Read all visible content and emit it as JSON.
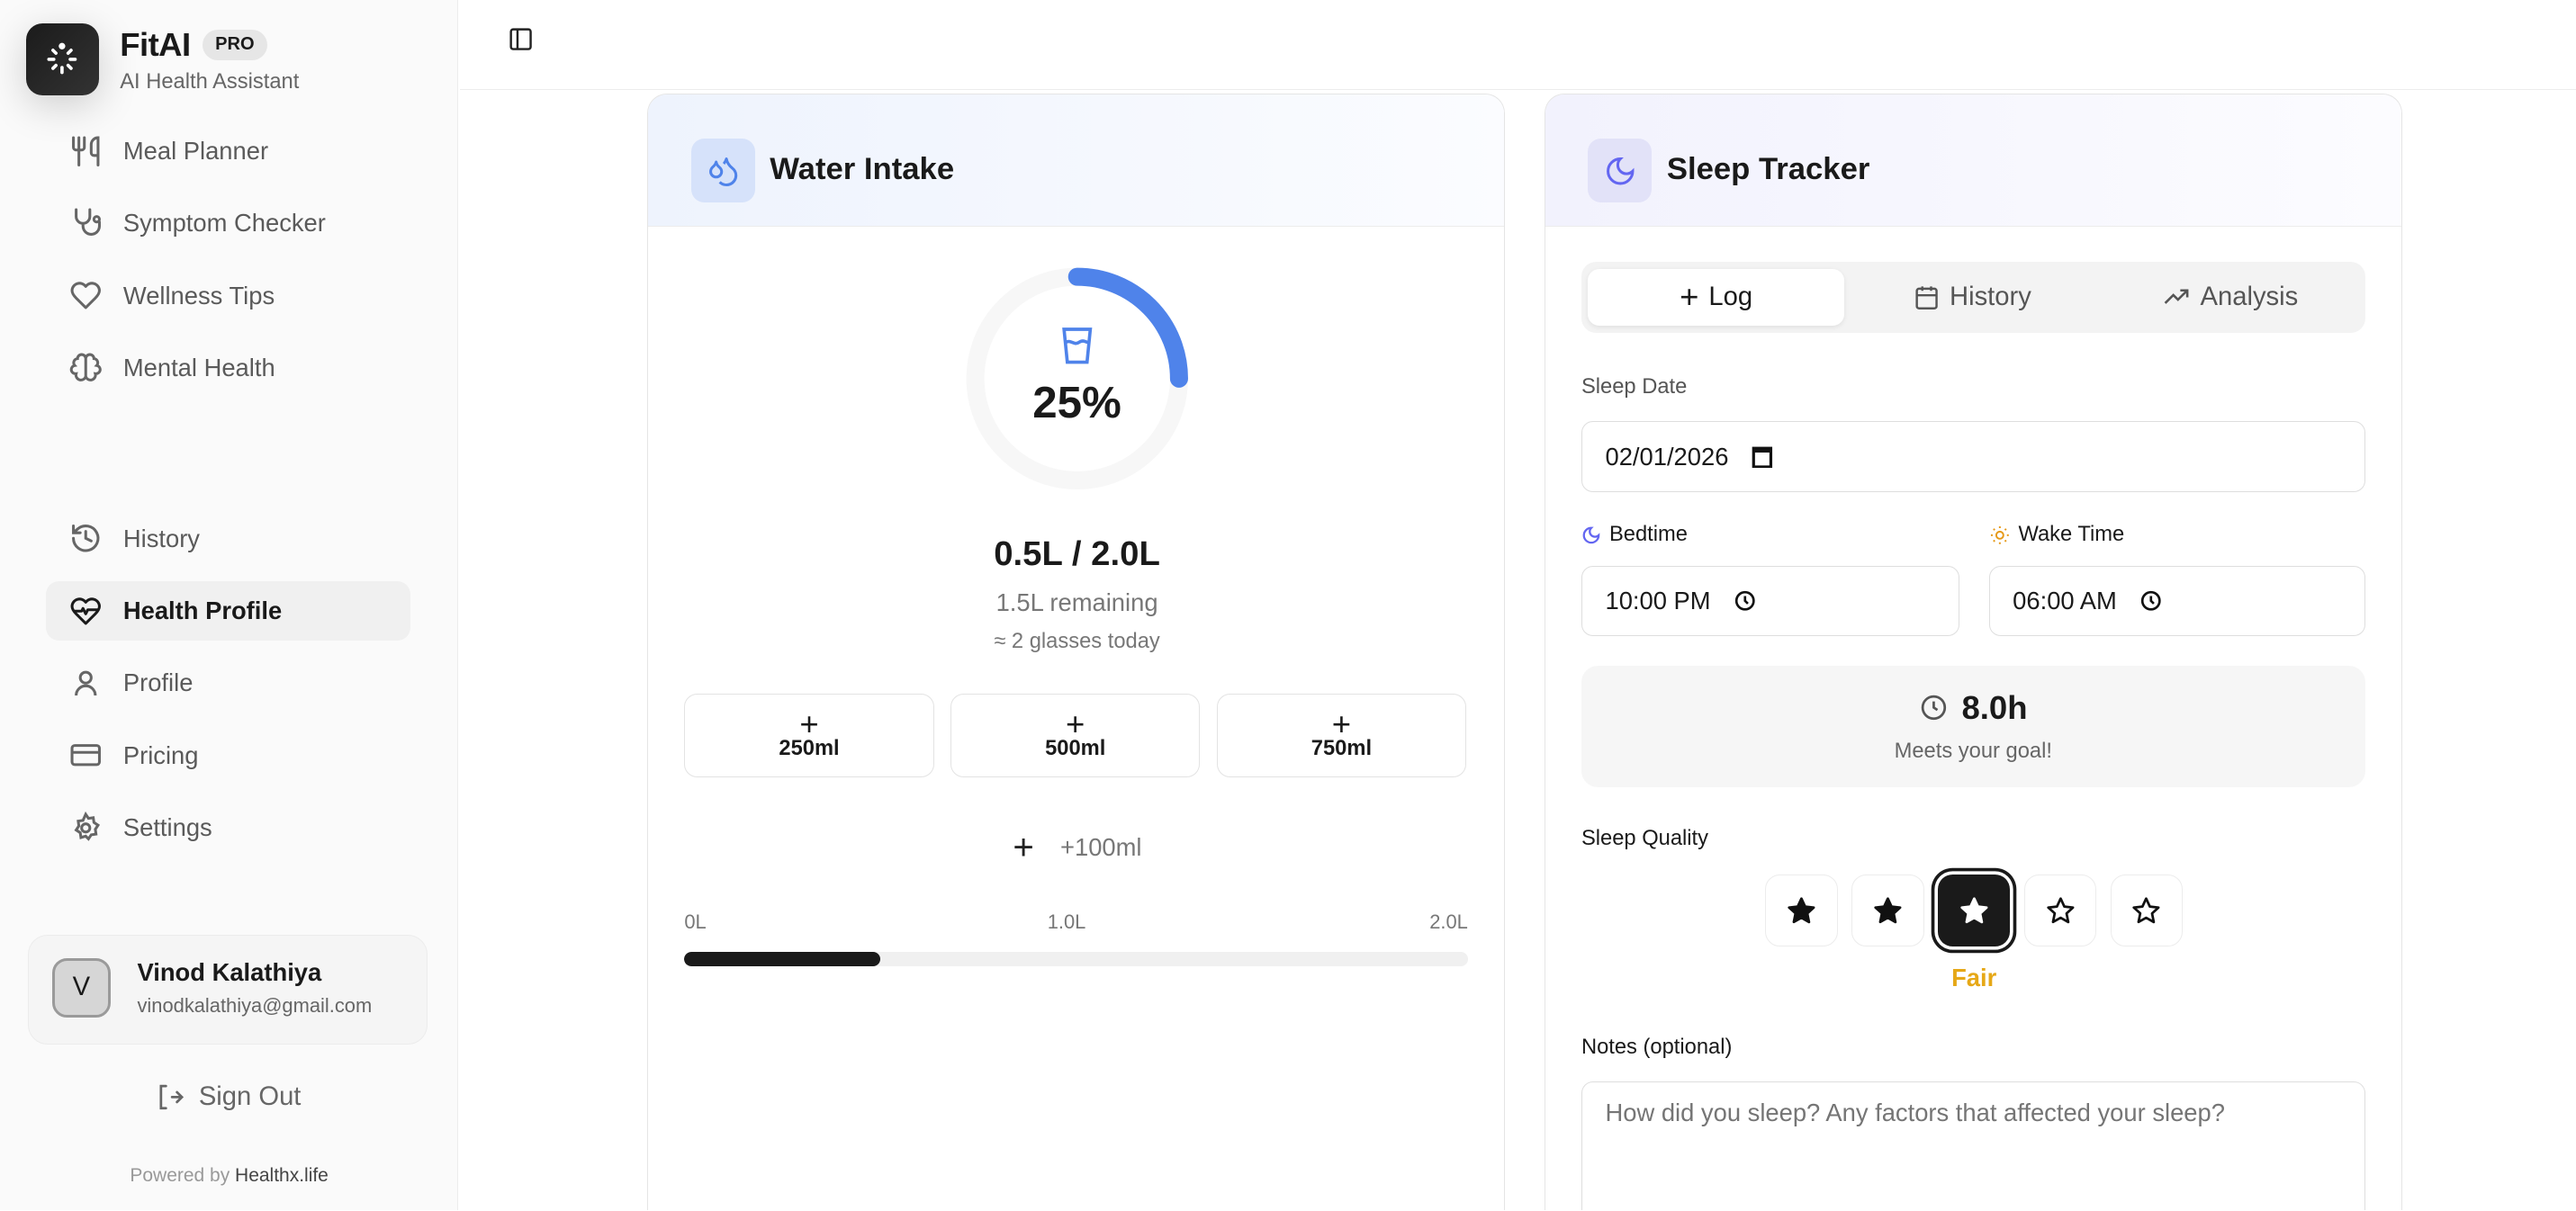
{
  "app": {
    "name": "FitAI",
    "badge": "PRO",
    "tagline": "AI Health Assistant"
  },
  "sidebar": {
    "items": [
      {
        "label": "Meal Planner",
        "icon": "utensils-icon"
      },
      {
        "label": "Symptom Checker",
        "icon": "stethoscope-icon"
      },
      {
        "label": "Wellness Tips",
        "icon": "heart-icon"
      },
      {
        "label": "Mental Health",
        "icon": "brain-icon"
      },
      {
        "label": "History",
        "icon": "history-icon"
      },
      {
        "label": "Health Profile",
        "icon": "heart-pulse-icon",
        "active": true
      },
      {
        "label": "Profile",
        "icon": "user-icon"
      },
      {
        "label": "Pricing",
        "icon": "credit-card-icon"
      },
      {
        "label": "Settings",
        "icon": "gear-icon"
      }
    ],
    "user": {
      "initial": "V",
      "name": "Vinod Kalathiya",
      "email": "vinodkalathiya@gmail.com"
    },
    "sign_out": "Sign Out",
    "powered_by": "Powered by",
    "powered_brand": "Healthx.life"
  },
  "water": {
    "title": "Water Intake",
    "percent": 25,
    "percent_label": "25%",
    "amount": "0.5L / 2.0L",
    "remaining": "1.5L remaining",
    "glasses": "≈ 2 glasses today",
    "buttons": [
      "250ml",
      "500ml",
      "750ml"
    ],
    "custom": "+100ml",
    "scale": [
      "0L",
      "1.0L",
      "2.0L"
    ],
    "accent": "#4f83ea"
  },
  "sleep": {
    "title": "Sleep Tracker",
    "tabs": [
      "Log",
      "History",
      "Analysis"
    ],
    "date_label": "Sleep Date",
    "date_value": "02/01/2026",
    "bedtime_label": "Bedtime",
    "bedtime_value": "10:00 PM",
    "wake_label": "Wake Time",
    "wake_value": "06:00 AM",
    "duration": "8.0h",
    "duration_note": "Meets your goal!",
    "quality_label": "Sleep Quality",
    "quality_rating": 3,
    "quality_max": 5,
    "quality_text": "Fair",
    "notes_label": "Notes (optional)",
    "notes_placeholder": "How did you sleep? Any factors that affected your sleep?",
    "accent": "#6366f1",
    "quality_color": "#e6a817"
  }
}
